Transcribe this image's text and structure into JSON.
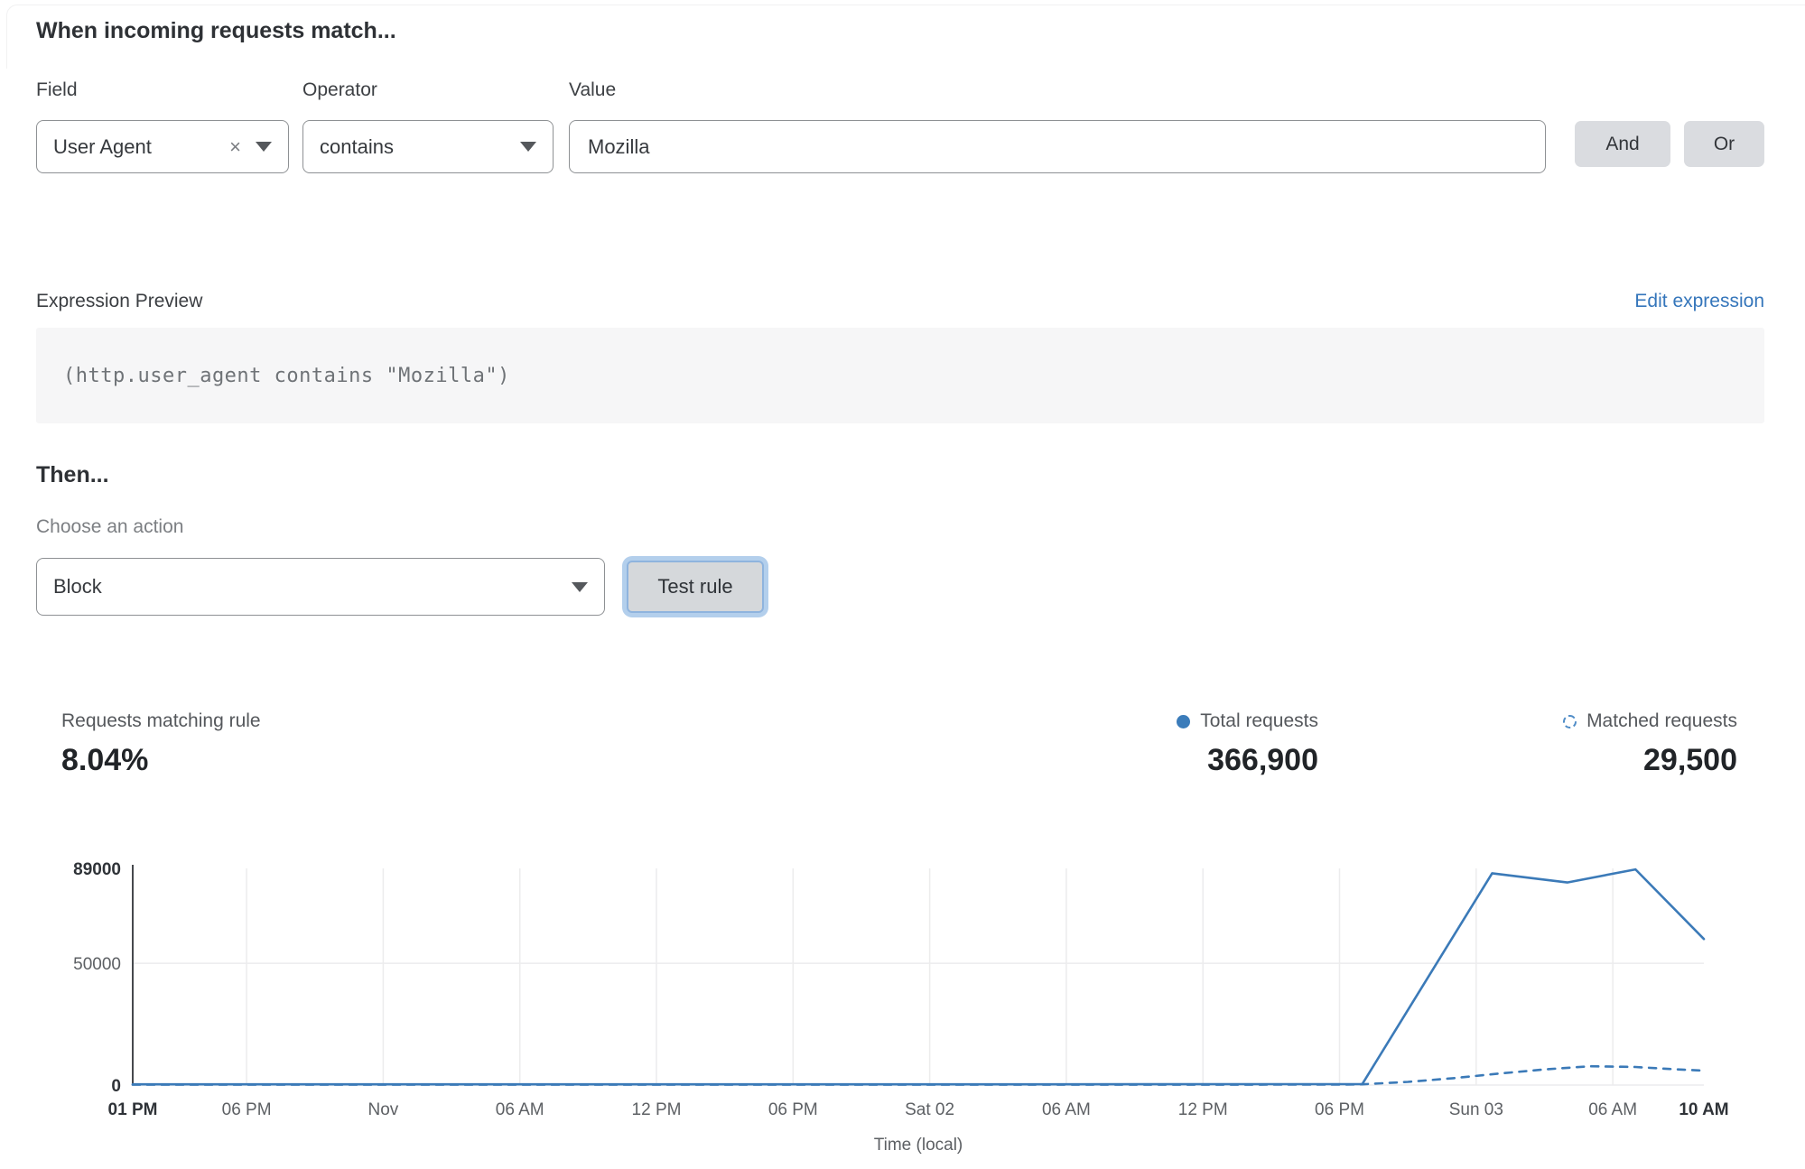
{
  "rule_builder": {
    "heading": "When incoming requests match...",
    "field_label": "Field",
    "operator_label": "Operator",
    "value_label": "Value",
    "field_value": "User Agent",
    "operator_value": "contains",
    "value_value": "Mozilla",
    "and_label": "And",
    "or_label": "Or",
    "clear_icon": "×"
  },
  "expression": {
    "label": "Expression Preview",
    "edit_link": "Edit expression",
    "code": "(http.user_agent contains \"Mozilla\")"
  },
  "action": {
    "heading": "Then...",
    "choose_label": "Choose an action",
    "selected_action": "Block",
    "test_button": "Test rule"
  },
  "stats": {
    "matching": {
      "label": "Requests matching rule",
      "value": "8.04%"
    },
    "total": {
      "label": "Total requests",
      "value": "366,900"
    },
    "matched": {
      "label": "Matched requests",
      "value": "29,500"
    }
  },
  "colors": {
    "line_blue": "#3b7ab8",
    "link_blue": "#3576bb",
    "grid_light": "#ececed",
    "axis_dark": "#46494d",
    "tick_regular": "#5d6064",
    "tick_bold": "#2f3338"
  },
  "chart_data": {
    "type": "line",
    "xlabel": "Time (local)",
    "x_unit_hours_from": "Fri 01 PM (local)",
    "xlim": [
      0,
      69
    ],
    "ylim": [
      0,
      89000
    ],
    "grid": true,
    "legend_position": "above-right",
    "x_ticks": [
      {
        "h": 0,
        "label": "01 PM",
        "bold": true
      },
      {
        "h": 5,
        "label": "06 PM",
        "bold": false
      },
      {
        "h": 11,
        "label": "Nov",
        "bold": false
      },
      {
        "h": 17,
        "label": "06 AM",
        "bold": false
      },
      {
        "h": 23,
        "label": "12 PM",
        "bold": false
      },
      {
        "h": 29,
        "label": "06 PM",
        "bold": false
      },
      {
        "h": 35,
        "label": "Sat 02",
        "bold": false
      },
      {
        "h": 41,
        "label": "06 AM",
        "bold": false
      },
      {
        "h": 47,
        "label": "12 PM",
        "bold": false
      },
      {
        "h": 53,
        "label": "06 PM",
        "bold": false
      },
      {
        "h": 59,
        "label": "Sun 03",
        "bold": false
      },
      {
        "h": 65,
        "label": "06 AM",
        "bold": false
      },
      {
        "h": 69,
        "label": "10 AM",
        "bold": true
      }
    ],
    "y_ticks": [
      {
        "v": 0,
        "label": "0",
        "bold": true,
        "gridline": true
      },
      {
        "v": 50000,
        "label": "50000",
        "bold": false,
        "gridline": true
      },
      {
        "v": 89000,
        "label": "89000",
        "bold": true,
        "gridline": false
      }
    ],
    "series": [
      {
        "name": "Total requests",
        "style": "solid",
        "points": [
          [
            0,
            300
          ],
          [
            14,
            300
          ],
          [
            27,
            300
          ],
          [
            40,
            300
          ],
          [
            54,
            400
          ],
          [
            59.7,
            87000
          ],
          [
            63,
            83200
          ],
          [
            66,
            88600
          ],
          [
            69,
            60000
          ]
        ]
      },
      {
        "name": "Matched requests",
        "style": "dashed",
        "points": [
          [
            0,
            150
          ],
          [
            27,
            160
          ],
          [
            53,
            180
          ],
          [
            54,
            300
          ],
          [
            56,
            1300
          ],
          [
            58,
            2800
          ],
          [
            60,
            4700
          ],
          [
            62,
            6400
          ],
          [
            64,
            7700
          ],
          [
            66,
            7400
          ],
          [
            67.5,
            6600
          ],
          [
            69,
            5900
          ]
        ]
      }
    ]
  }
}
